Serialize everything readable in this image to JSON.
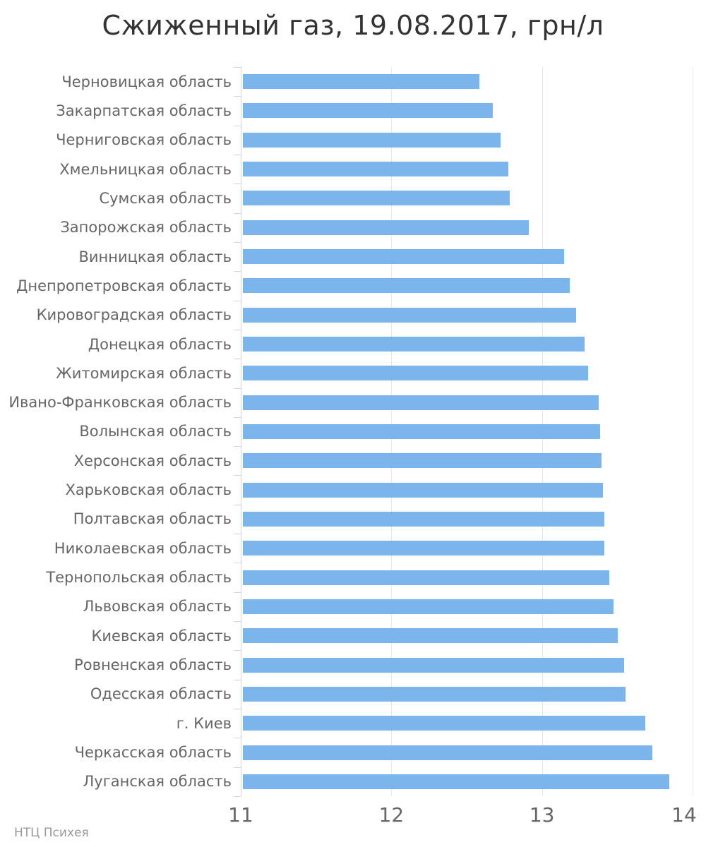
{
  "title": "Сжиженный газ, 19.08.2017, грн/л",
  "credits": "НТЦ Психея",
  "colors": {
    "bar": "#7cb5ec",
    "title_text": "#333333",
    "label_text": "#666666",
    "axis_line": "#ccd6eb",
    "gridline": "#e6e6e6",
    "credits_text": "#999999",
    "background": "#ffffff"
  },
  "chart_data": {
    "type": "bar",
    "orientation": "horizontal",
    "title": "Сжиженный газ, 19.08.2017, грн/л",
    "xlabel": "",
    "ylabel": "",
    "legend": false,
    "grid": true,
    "xlim": [
      11,
      14
    ],
    "x_ticks": [
      11,
      12,
      13,
      14
    ],
    "categories": [
      "Черновицкая область",
      "Закарпатская область",
      "Черниговская область",
      "Хмельницкая область",
      "Сумская область",
      "Запорожская область",
      "Винницкая область",
      "Днепропетровская область",
      "Кировоградская область",
      "Донецкая область",
      "Житомирская область",
      "Ивано-Франковская область",
      "Волынская область",
      "Херсонская область",
      "Харьковская область",
      "Полтавская область",
      "Николаевская область",
      "Тернопольская область",
      "Львовская область",
      "Киевская область",
      "Ровненская область",
      "Одесская область",
      "г. Киев",
      "Черкасская область",
      "Луганская область"
    ],
    "values": [
      12.58,
      12.67,
      12.72,
      12.77,
      12.78,
      12.91,
      13.14,
      13.18,
      13.22,
      13.28,
      13.3,
      13.37,
      13.38,
      13.39,
      13.4,
      13.41,
      13.41,
      13.44,
      13.47,
      13.5,
      13.54,
      13.55,
      13.68,
      13.73,
      13.84
    ]
  }
}
